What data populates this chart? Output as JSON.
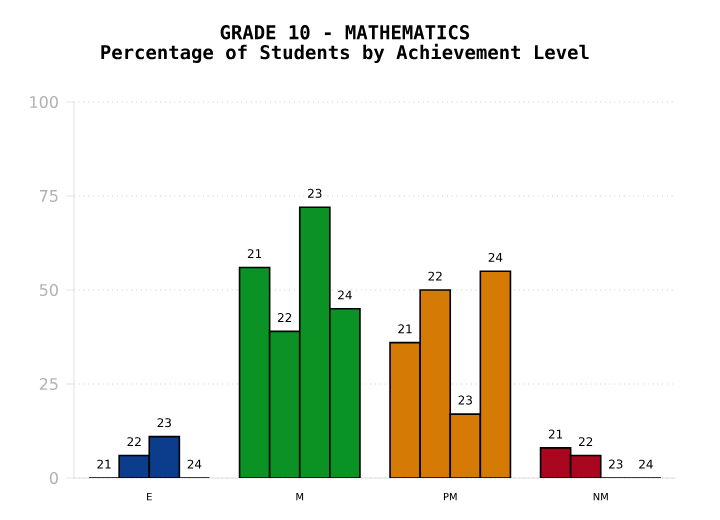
{
  "chart_data": {
    "type": "bar",
    "title": "GRADE 10 - MATHEMATICS",
    "subtitle": "Percentage of Students by Achievement Level",
    "categories": [
      "E",
      "M",
      "PM",
      "NM"
    ],
    "ylim": [
      0,
      100
    ],
    "yticks": [
      0,
      25,
      50,
      75,
      100
    ],
    "grid": "y",
    "series": [
      {
        "name": "21",
        "colors": [
          "#0b3d8c",
          "#0a9324",
          "#d57b05",
          "#a8071f"
        ],
        "values": [
          0,
          56,
          36,
          8
        ]
      },
      {
        "name": "22",
        "colors": [
          "#0b3d8c",
          "#0a9324",
          "#d57b05",
          "#a8071f"
        ],
        "values": [
          6,
          39,
          50,
          6
        ]
      },
      {
        "name": "23",
        "colors": [
          "#0b3d8c",
          "#0a9324",
          "#d57b05",
          "#a8071f"
        ],
        "values": [
          11,
          72,
          17,
          0
        ]
      },
      {
        "name": "24",
        "colors": [
          "#0b3d8c",
          "#0a9324",
          "#d57b05",
          "#a8071f"
        ],
        "values": [
          0,
          45,
          55,
          0
        ]
      }
    ]
  }
}
